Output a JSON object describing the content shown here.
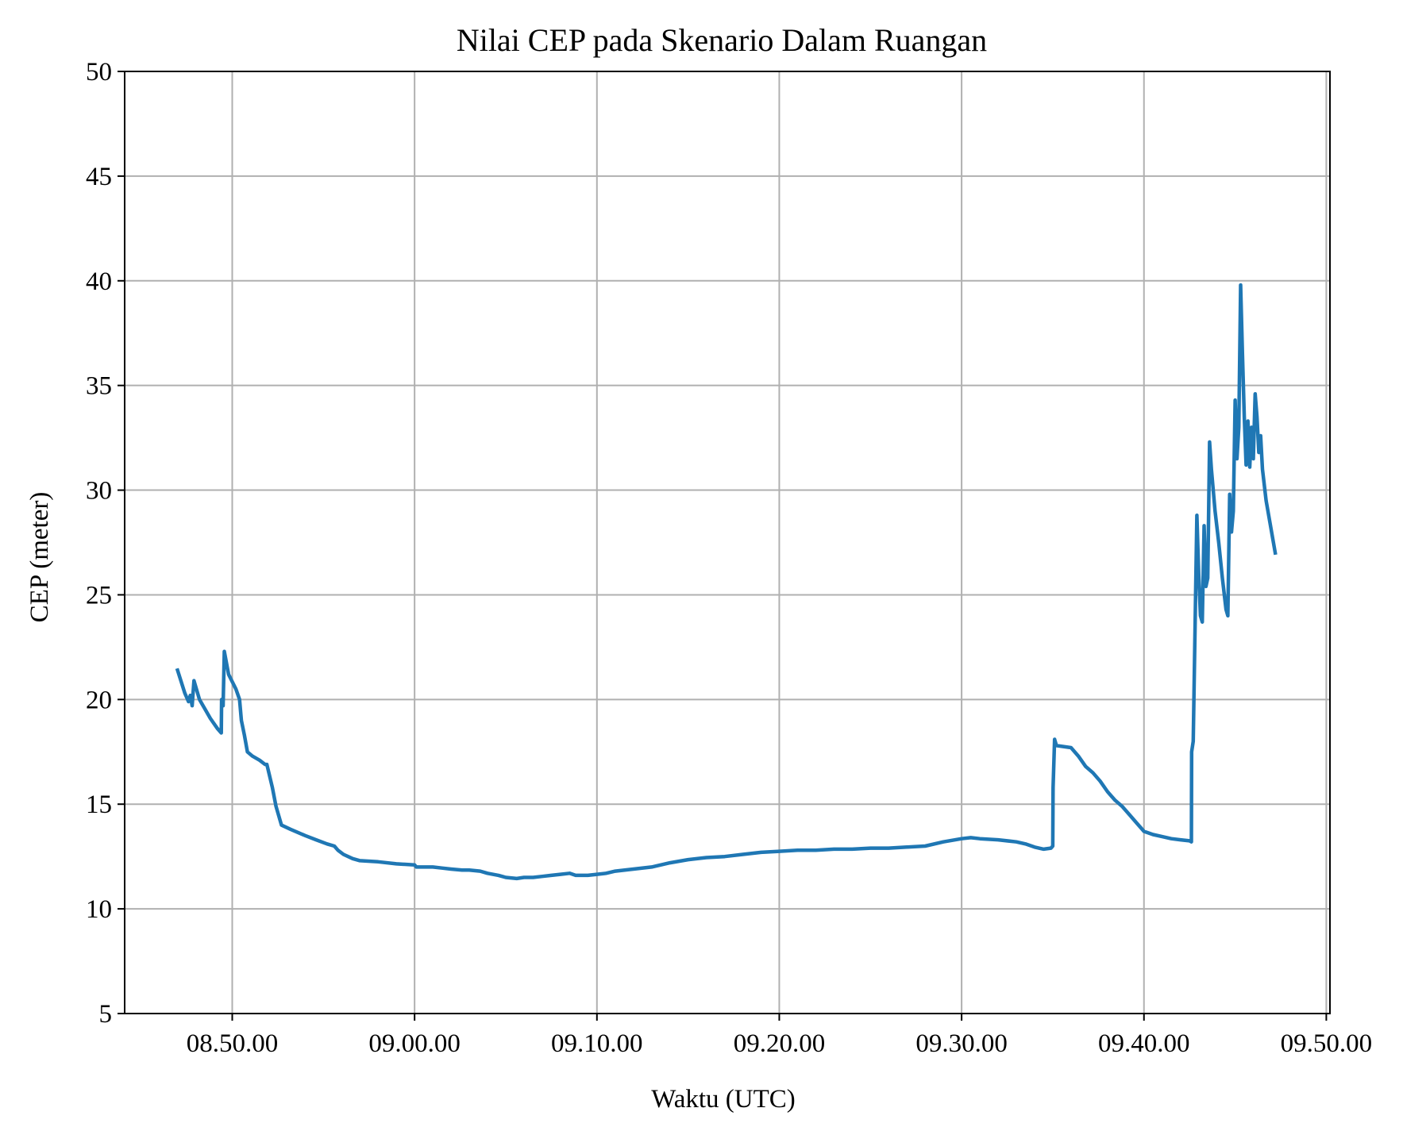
{
  "chart_data": {
    "type": "line",
    "title": "Nilai CEP pada Skenario Dalam Ruangan",
    "xlabel": "Waktu (UTC)",
    "ylabel": "CEP (meter)",
    "x_unit": "time of day (HH.MM.SS)",
    "xlim": [
      "08.44.06",
      "09.50.12"
    ],
    "ylim": [
      5,
      50
    ],
    "x_ticks": [
      "08.50.00",
      "09.00.00",
      "09.10.00",
      "09.20.00",
      "09.30.00",
      "09.40.00",
      "09.50.00"
    ],
    "y_ticks": [
      5,
      10,
      15,
      20,
      25,
      30,
      35,
      40,
      45,
      50
    ],
    "grid": true,
    "legend": "none",
    "series": [
      {
        "color": "#1f77b4",
        "points": [
          [
            "08.47.00",
            21.4
          ],
          [
            "08.47.24",
            20.3
          ],
          [
            "08.47.36",
            19.9
          ],
          [
            "08.47.42",
            20.2
          ],
          [
            "08.47.48",
            19.7
          ],
          [
            "08.47.54",
            20.9
          ],
          [
            "08.48.12",
            20.0
          ],
          [
            "08.48.48",
            19.1
          ],
          [
            "08.49.12",
            18.6
          ],
          [
            "08.49.24",
            18.4
          ],
          [
            "08.49.25",
            20.0
          ],
          [
            "08.49.30",
            19.7
          ],
          [
            "08.49.34",
            22.3
          ],
          [
            "08.49.48",
            21.2
          ],
          [
            "08.50.12",
            20.5
          ],
          [
            "08.50.24",
            20.0
          ],
          [
            "08.50.30",
            19.0
          ],
          [
            "08.50.40",
            18.3
          ],
          [
            "08.50.50",
            17.5
          ],
          [
            "08.51.06",
            17.3
          ],
          [
            "08.51.30",
            17.1
          ],
          [
            "08.51.48",
            16.9
          ],
          [
            "08.51.54",
            16.9
          ],
          [
            "08.52.12",
            15.8
          ],
          [
            "08.52.24",
            14.9
          ],
          [
            "08.52.42",
            14.0
          ],
          [
            "08.53.12",
            13.8
          ],
          [
            "08.54.00",
            13.5
          ],
          [
            "08.54.36",
            13.3
          ],
          [
            "08.55.12",
            13.1
          ],
          [
            "08.55.36",
            13.0
          ],
          [
            "08.55.48",
            12.8
          ],
          [
            "08.56.06",
            12.6
          ],
          [
            "08.56.36",
            12.4
          ],
          [
            "08.57.00",
            12.3
          ],
          [
            "08.58.00",
            12.25
          ],
          [
            "08.59.00",
            12.15
          ],
          [
            "09.00.00",
            12.1
          ],
          [
            "09.00.06",
            12.0
          ],
          [
            "09.01.00",
            12.0
          ],
          [
            "09.01.30",
            11.95
          ],
          [
            "09.02.00",
            11.9
          ],
          [
            "09.02.36",
            11.85
          ],
          [
            "09.03.00",
            11.85
          ],
          [
            "09.03.36",
            11.8
          ],
          [
            "09.04.00",
            11.7
          ],
          [
            "09.04.36",
            11.6
          ],
          [
            "09.05.00",
            11.5
          ],
          [
            "09.05.36",
            11.45
          ],
          [
            "09.06.00",
            11.5
          ],
          [
            "09.06.30",
            11.5
          ],
          [
            "09.07.00",
            11.55
          ],
          [
            "09.07.30",
            11.6
          ],
          [
            "09.08.00",
            11.65
          ],
          [
            "09.08.30",
            11.7
          ],
          [
            "09.08.50",
            11.6
          ],
          [
            "09.09.30",
            11.6
          ],
          [
            "09.10.00",
            11.65
          ],
          [
            "09.10.30",
            11.7
          ],
          [
            "09.11.00",
            11.8
          ],
          [
            "09.12.00",
            11.9
          ],
          [
            "09.13.00",
            12.0
          ],
          [
            "09.14.00",
            12.2
          ],
          [
            "09.15.00",
            12.35
          ],
          [
            "09.16.00",
            12.45
          ],
          [
            "09.17.00",
            12.5
          ],
          [
            "09.18.00",
            12.6
          ],
          [
            "09.19.00",
            12.7
          ],
          [
            "09.20.00",
            12.75
          ],
          [
            "09.21.00",
            12.8
          ],
          [
            "09.22.00",
            12.8
          ],
          [
            "09.23.00",
            12.85
          ],
          [
            "09.24.00",
            12.85
          ],
          [
            "09.25.00",
            12.9
          ],
          [
            "09.26.00",
            12.9
          ],
          [
            "09.27.00",
            12.95
          ],
          [
            "09.28.00",
            13.0
          ],
          [
            "09.29.00",
            13.2
          ],
          [
            "09.30.00",
            13.35
          ],
          [
            "09.30.30",
            13.4
          ],
          [
            "09.31.00",
            13.35
          ],
          [
            "09.32.00",
            13.3
          ],
          [
            "09.33.00",
            13.2
          ],
          [
            "09.33.30",
            13.1
          ],
          [
            "09.34.00",
            12.95
          ],
          [
            "09.34.30",
            12.85
          ],
          [
            "09.34.54",
            12.9
          ],
          [
            "09.35.00",
            13.0
          ],
          [
            "09.35.01",
            15.8
          ],
          [
            "09.35.06",
            18.1
          ],
          [
            "09.35.12",
            17.8
          ],
          [
            "09.36.00",
            17.7
          ],
          [
            "09.36.24",
            17.3
          ],
          [
            "09.36.48",
            16.8
          ],
          [
            "09.37.12",
            16.5
          ],
          [
            "09.37.36",
            16.1
          ],
          [
            "09.38.00",
            15.6
          ],
          [
            "09.38.24",
            15.2
          ],
          [
            "09.38.48",
            14.9
          ],
          [
            "09.39.12",
            14.5
          ],
          [
            "09.39.36",
            14.1
          ],
          [
            "09.40.00",
            13.7
          ],
          [
            "09.40.30",
            13.55
          ],
          [
            "09.41.00",
            13.45
          ],
          [
            "09.41.30",
            13.35
          ],
          [
            "09.42.00",
            13.3
          ],
          [
            "09.42.30",
            13.25
          ],
          [
            "09.42.36",
            13.2
          ],
          [
            "09.42.37",
            17.5
          ],
          [
            "09.42.42",
            18.0
          ],
          [
            "09.42.54",
            28.8
          ],
          [
            "09.43.00",
            26.0
          ],
          [
            "09.43.06",
            24.0
          ],
          [
            "09.43.12",
            23.7
          ],
          [
            "09.43.18",
            28.3
          ],
          [
            "09.43.24",
            25.4
          ],
          [
            "09.43.30",
            25.8
          ],
          [
            "09.43.36",
            32.3
          ],
          [
            "09.43.42",
            31.0
          ],
          [
            "09.43.54",
            29.0
          ],
          [
            "09.44.06",
            27.5
          ],
          [
            "09.44.18",
            25.8
          ],
          [
            "09.44.30",
            24.3
          ],
          [
            "09.44.36",
            24.0
          ],
          [
            "09.44.42",
            29.8
          ],
          [
            "09.44.48",
            28.0
          ],
          [
            "09.44.54",
            29.0
          ],
          [
            "09.45.00",
            34.3
          ],
          [
            "09.45.06",
            31.5
          ],
          [
            "09.45.12",
            33.0
          ],
          [
            "09.45.18",
            39.8
          ],
          [
            "09.45.24",
            36.5
          ],
          [
            "09.45.30",
            33.5
          ],
          [
            "09.45.36",
            31.2
          ],
          [
            "09.45.42",
            33.3
          ],
          [
            "09.45.48",
            31.1
          ],
          [
            "09.45.54",
            33.0
          ],
          [
            "09.46.00",
            31.5
          ],
          [
            "09.46.06",
            34.6
          ],
          [
            "09.46.12",
            33.5
          ],
          [
            "09.46.18",
            31.8
          ],
          [
            "09.46.24",
            32.6
          ],
          [
            "09.46.30",
            31.0
          ],
          [
            "09.46.42",
            29.5
          ],
          [
            "09.46.54",
            28.5
          ],
          [
            "09.47.06",
            27.5
          ],
          [
            "09.47.12",
            27.0
          ]
        ]
      }
    ]
  }
}
